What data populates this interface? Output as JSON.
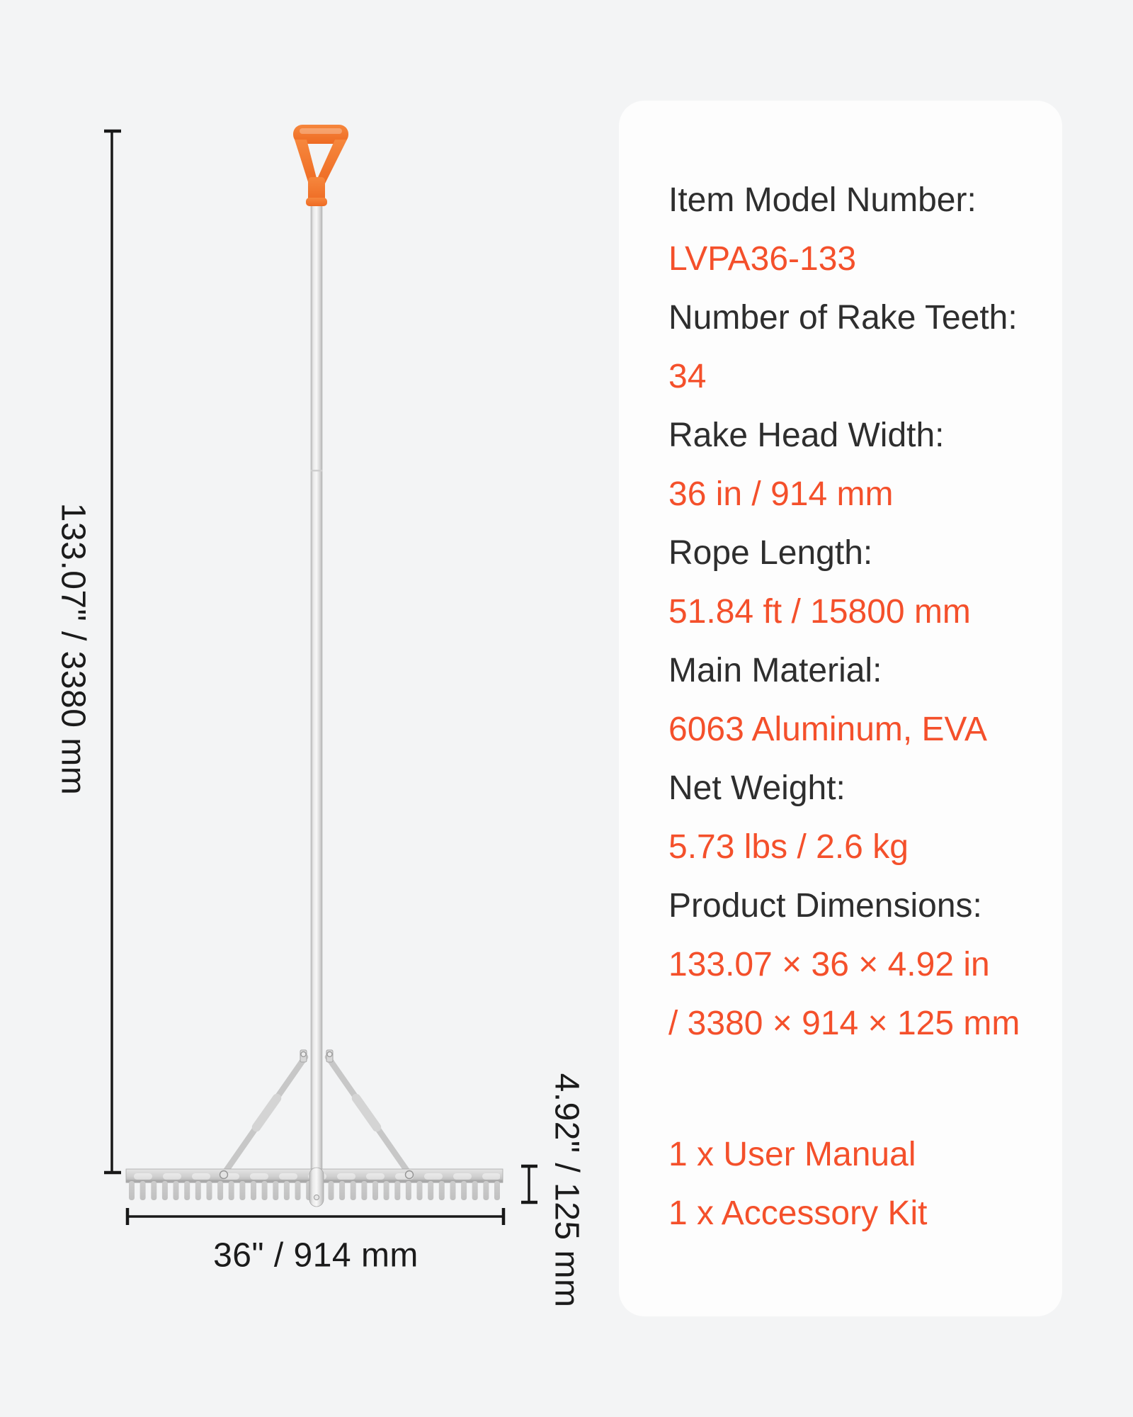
{
  "colors": {
    "page_background": "#f3f4f5",
    "card_background": "#fdfdfd",
    "accent": "#f4502b",
    "label_text": "#2e2e2e",
    "dimension_text": "#1b1b1b",
    "handle_orange": "#f0712c",
    "metal_silver": "#d9d9d9"
  },
  "drawing": {
    "height_label": "133.07\" / 3380 mm",
    "width_label": "36\" / 914 mm",
    "head_height_label": "4.92\" / 125 mm",
    "teeth_count": 34
  },
  "spec_card": {
    "rows": [
      {
        "label": "Item Model Number:",
        "values": [
          "LVPA36-133"
        ]
      },
      {
        "label": "Number of Rake Teeth:",
        "values": [
          "34"
        ]
      },
      {
        "label": "Rake Head Width:",
        "values": [
          "36 in / 914 mm"
        ]
      },
      {
        "label": "Rope Length:",
        "values": [
          "51.84 ft / 15800 mm"
        ]
      },
      {
        "label": "Main Material:",
        "values": [
          "6063 Aluminum, EVA"
        ]
      },
      {
        "label": "Net Weight:",
        "values": [
          "5.73 lbs / 2.6 kg"
        ]
      },
      {
        "label": "Product Dimensions:",
        "values": [
          "133.07 × 36 × 4.92 in",
          "/ 3380 × 914 × 125 mm"
        ]
      }
    ],
    "includes": [
      "1 x User Manual",
      "1 x Accessory Kit"
    ]
  }
}
